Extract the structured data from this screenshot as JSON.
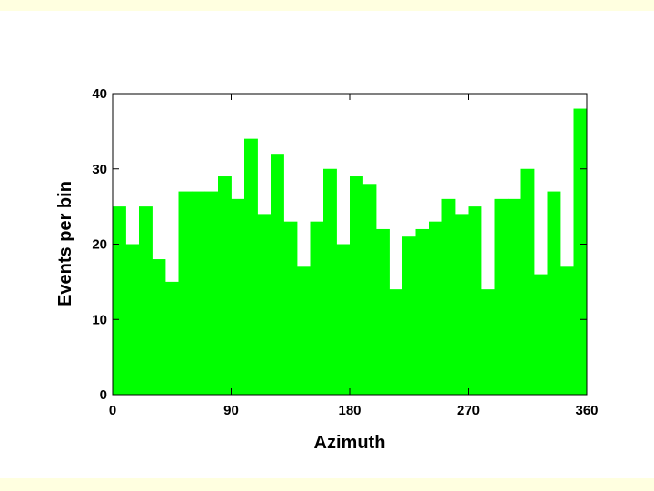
{
  "chart_data": {
    "type": "histogram",
    "x_label": "Azimuth",
    "y_label": "Events per bin",
    "bins": [
      0,
      10,
      20,
      30,
      40,
      50,
      60,
      70,
      80,
      90,
      100,
      110,
      120,
      130,
      140,
      150,
      160,
      170,
      180,
      190,
      200,
      210,
      220,
      230,
      240,
      250,
      260,
      270,
      280,
      290,
      300,
      310,
      320,
      330,
      340,
      350,
      360
    ],
    "values": [
      25,
      20,
      25,
      18,
      15,
      27,
      27,
      27,
      29,
      26,
      34,
      24,
      32,
      23,
      17,
      23,
      30,
      20,
      29,
      28,
      22,
      14,
      21,
      22,
      23,
      26,
      24,
      25,
      14,
      26,
      26,
      30,
      16,
      27,
      17,
      38
    ],
    "color": "#00ff00",
    "xlim": [
      0,
      360
    ],
    "xticks": [
      0,
      90,
      180,
      270,
      360
    ],
    "ylim": [
      0,
      40
    ],
    "yticks": [
      0,
      10,
      20,
      30,
      40
    ]
  }
}
